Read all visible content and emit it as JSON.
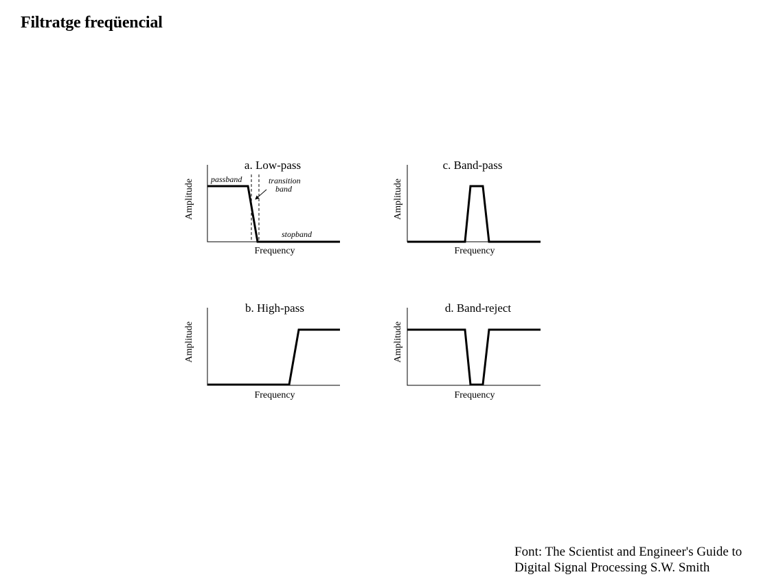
{
  "page": {
    "title": "Filtratge freqüencial"
  },
  "figure": {
    "panels": [
      {
        "title": "a. Low-pass",
        "xlabel": "Frequency",
        "ylabel": "Amplitude",
        "annotations": {
          "passband": "passband",
          "transition_1": "transition",
          "transition_2": "band",
          "stopband": "stopband"
        }
      },
      {
        "title": "b. High-pass",
        "xlabel": "Frequency",
        "ylabel": "Amplitude"
      },
      {
        "title": "c. Band-pass",
        "xlabel": "Frequency",
        "ylabel": "Amplitude"
      },
      {
        "title": "d. Band-reject",
        "xlabel": "Frequency",
        "ylabel": "Amplitude"
      }
    ]
  },
  "source": {
    "line1": "Font: The Scientist and Engineer's Guide to",
    "line2": "Digital Signal Processing S.W. Smith"
  }
}
